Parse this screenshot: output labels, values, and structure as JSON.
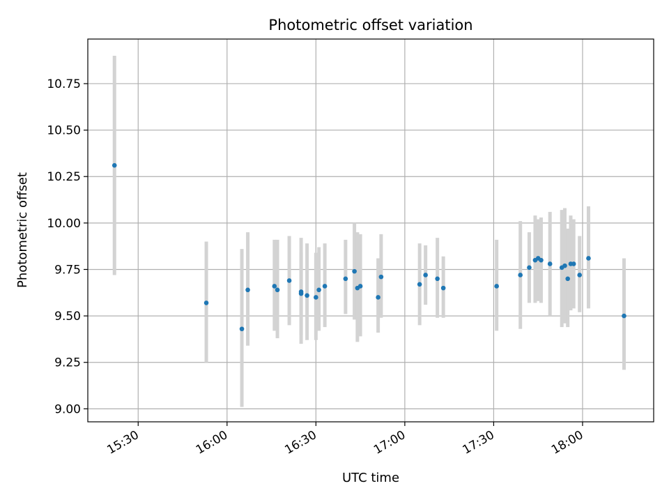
{
  "chart_data": {
    "type": "scatter",
    "title": "Photometric offset variation",
    "xlabel": "UTC time",
    "ylabel": "Photometric offset",
    "x_is_time": true,
    "xlim": [
      "15:13",
      "18:24"
    ],
    "ylim": [
      8.93,
      10.99
    ],
    "x_ticks": [
      "15:30",
      "16:00",
      "16:30",
      "17:00",
      "17:30",
      "18:00"
    ],
    "y_ticks": [
      "9.00",
      "9.25",
      "9.50",
      "9.75",
      "10.00",
      "10.25",
      "10.50",
      "10.75"
    ],
    "grid": true,
    "marker_color": "#1f77b4",
    "errorbar_color": "#d3d3d3",
    "series": [
      {
        "points": [
          {
            "t": "15:22",
            "y": 10.31,
            "lo": 9.72,
            "hi": 10.9
          },
          {
            "t": "15:53",
            "y": 9.57,
            "lo": 9.25,
            "hi": 9.9
          },
          {
            "t": "16:05",
            "y": 9.43,
            "lo": 9.01,
            "hi": 9.86
          },
          {
            "t": "16:07",
            "y": 9.64,
            "lo": 9.34,
            "hi": 9.95
          },
          {
            "t": "16:16",
            "y": 9.66,
            "lo": 9.42,
            "hi": 9.91
          },
          {
            "t": "16:17",
            "y": 9.64,
            "lo": 9.38,
            "hi": 9.91
          },
          {
            "t": "16:21",
            "y": 9.69,
            "lo": 9.45,
            "hi": 9.93
          },
          {
            "t": "16:25",
            "y": 9.62,
            "lo": 9.4,
            "hi": 9.84
          },
          {
            "t": "16:25",
            "y": 9.63,
            "lo": 9.35,
            "hi": 9.92
          },
          {
            "t": "16:27",
            "y": 9.61,
            "lo": 9.37,
            "hi": 9.89
          },
          {
            "t": "16:30",
            "y": 9.6,
            "lo": 9.37,
            "hi": 9.84
          },
          {
            "t": "16:31",
            "y": 9.64,
            "lo": 9.42,
            "hi": 9.87
          },
          {
            "t": "16:33",
            "y": 9.66,
            "lo": 9.44,
            "hi": 9.89
          },
          {
            "t": "16:40",
            "y": 9.7,
            "lo": 9.51,
            "hi": 9.91
          },
          {
            "t": "16:43",
            "y": 9.74,
            "lo": 9.48,
            "hi": 10.0
          },
          {
            "t": "16:44",
            "y": 9.65,
            "lo": 9.36,
            "hi": 9.95
          },
          {
            "t": "16:45",
            "y": 9.66,
            "lo": 9.39,
            "hi": 9.94
          },
          {
            "t": "16:51",
            "y": 9.6,
            "lo": 9.41,
            "hi": 9.81
          },
          {
            "t": "16:52",
            "y": 9.71,
            "lo": 9.49,
            "hi": 9.94
          },
          {
            "t": "17:05",
            "y": 9.67,
            "lo": 9.45,
            "hi": 9.89
          },
          {
            "t": "17:07",
            "y": 9.72,
            "lo": 9.56,
            "hi": 9.88
          },
          {
            "t": "17:11",
            "y": 9.7,
            "lo": 9.49,
            "hi": 9.92
          },
          {
            "t": "17:13",
            "y": 9.65,
            "lo": 9.49,
            "hi": 9.82
          },
          {
            "t": "17:31",
            "y": 9.66,
            "lo": 9.42,
            "hi": 9.91
          },
          {
            "t": "17:39",
            "y": 9.72,
            "lo": 9.43,
            "hi": 10.01
          },
          {
            "t": "17:42",
            "y": 9.76,
            "lo": 9.57,
            "hi": 9.95
          },
          {
            "t": "17:44",
            "y": 9.8,
            "lo": 9.57,
            "hi": 10.04
          },
          {
            "t": "17:45",
            "y": 9.81,
            "lo": 9.58,
            "hi": 10.02
          },
          {
            "t": "17:46",
            "y": 9.8,
            "lo": 9.57,
            "hi": 10.03
          },
          {
            "t": "17:49",
            "y": 9.78,
            "lo": 9.5,
            "hi": 10.06
          },
          {
            "t": "17:53",
            "y": 9.76,
            "lo": 9.44,
            "hi": 10.07
          },
          {
            "t": "17:54",
            "y": 9.77,
            "lo": 9.46,
            "hi": 10.08
          },
          {
            "t": "17:55",
            "y": 9.7,
            "lo": 9.44,
            "hi": 9.97
          },
          {
            "t": "17:56",
            "y": 9.78,
            "lo": 9.53,
            "hi": 10.04
          },
          {
            "t": "17:57",
            "y": 9.78,
            "lo": 9.54,
            "hi": 10.02
          },
          {
            "t": "17:59",
            "y": 9.72,
            "lo": 9.52,
            "hi": 9.93
          },
          {
            "t": "18:02",
            "y": 9.81,
            "lo": 9.54,
            "hi": 10.09
          },
          {
            "t": "18:14",
            "y": 9.5,
            "lo": 9.21,
            "hi": 9.81
          }
        ]
      }
    ]
  }
}
